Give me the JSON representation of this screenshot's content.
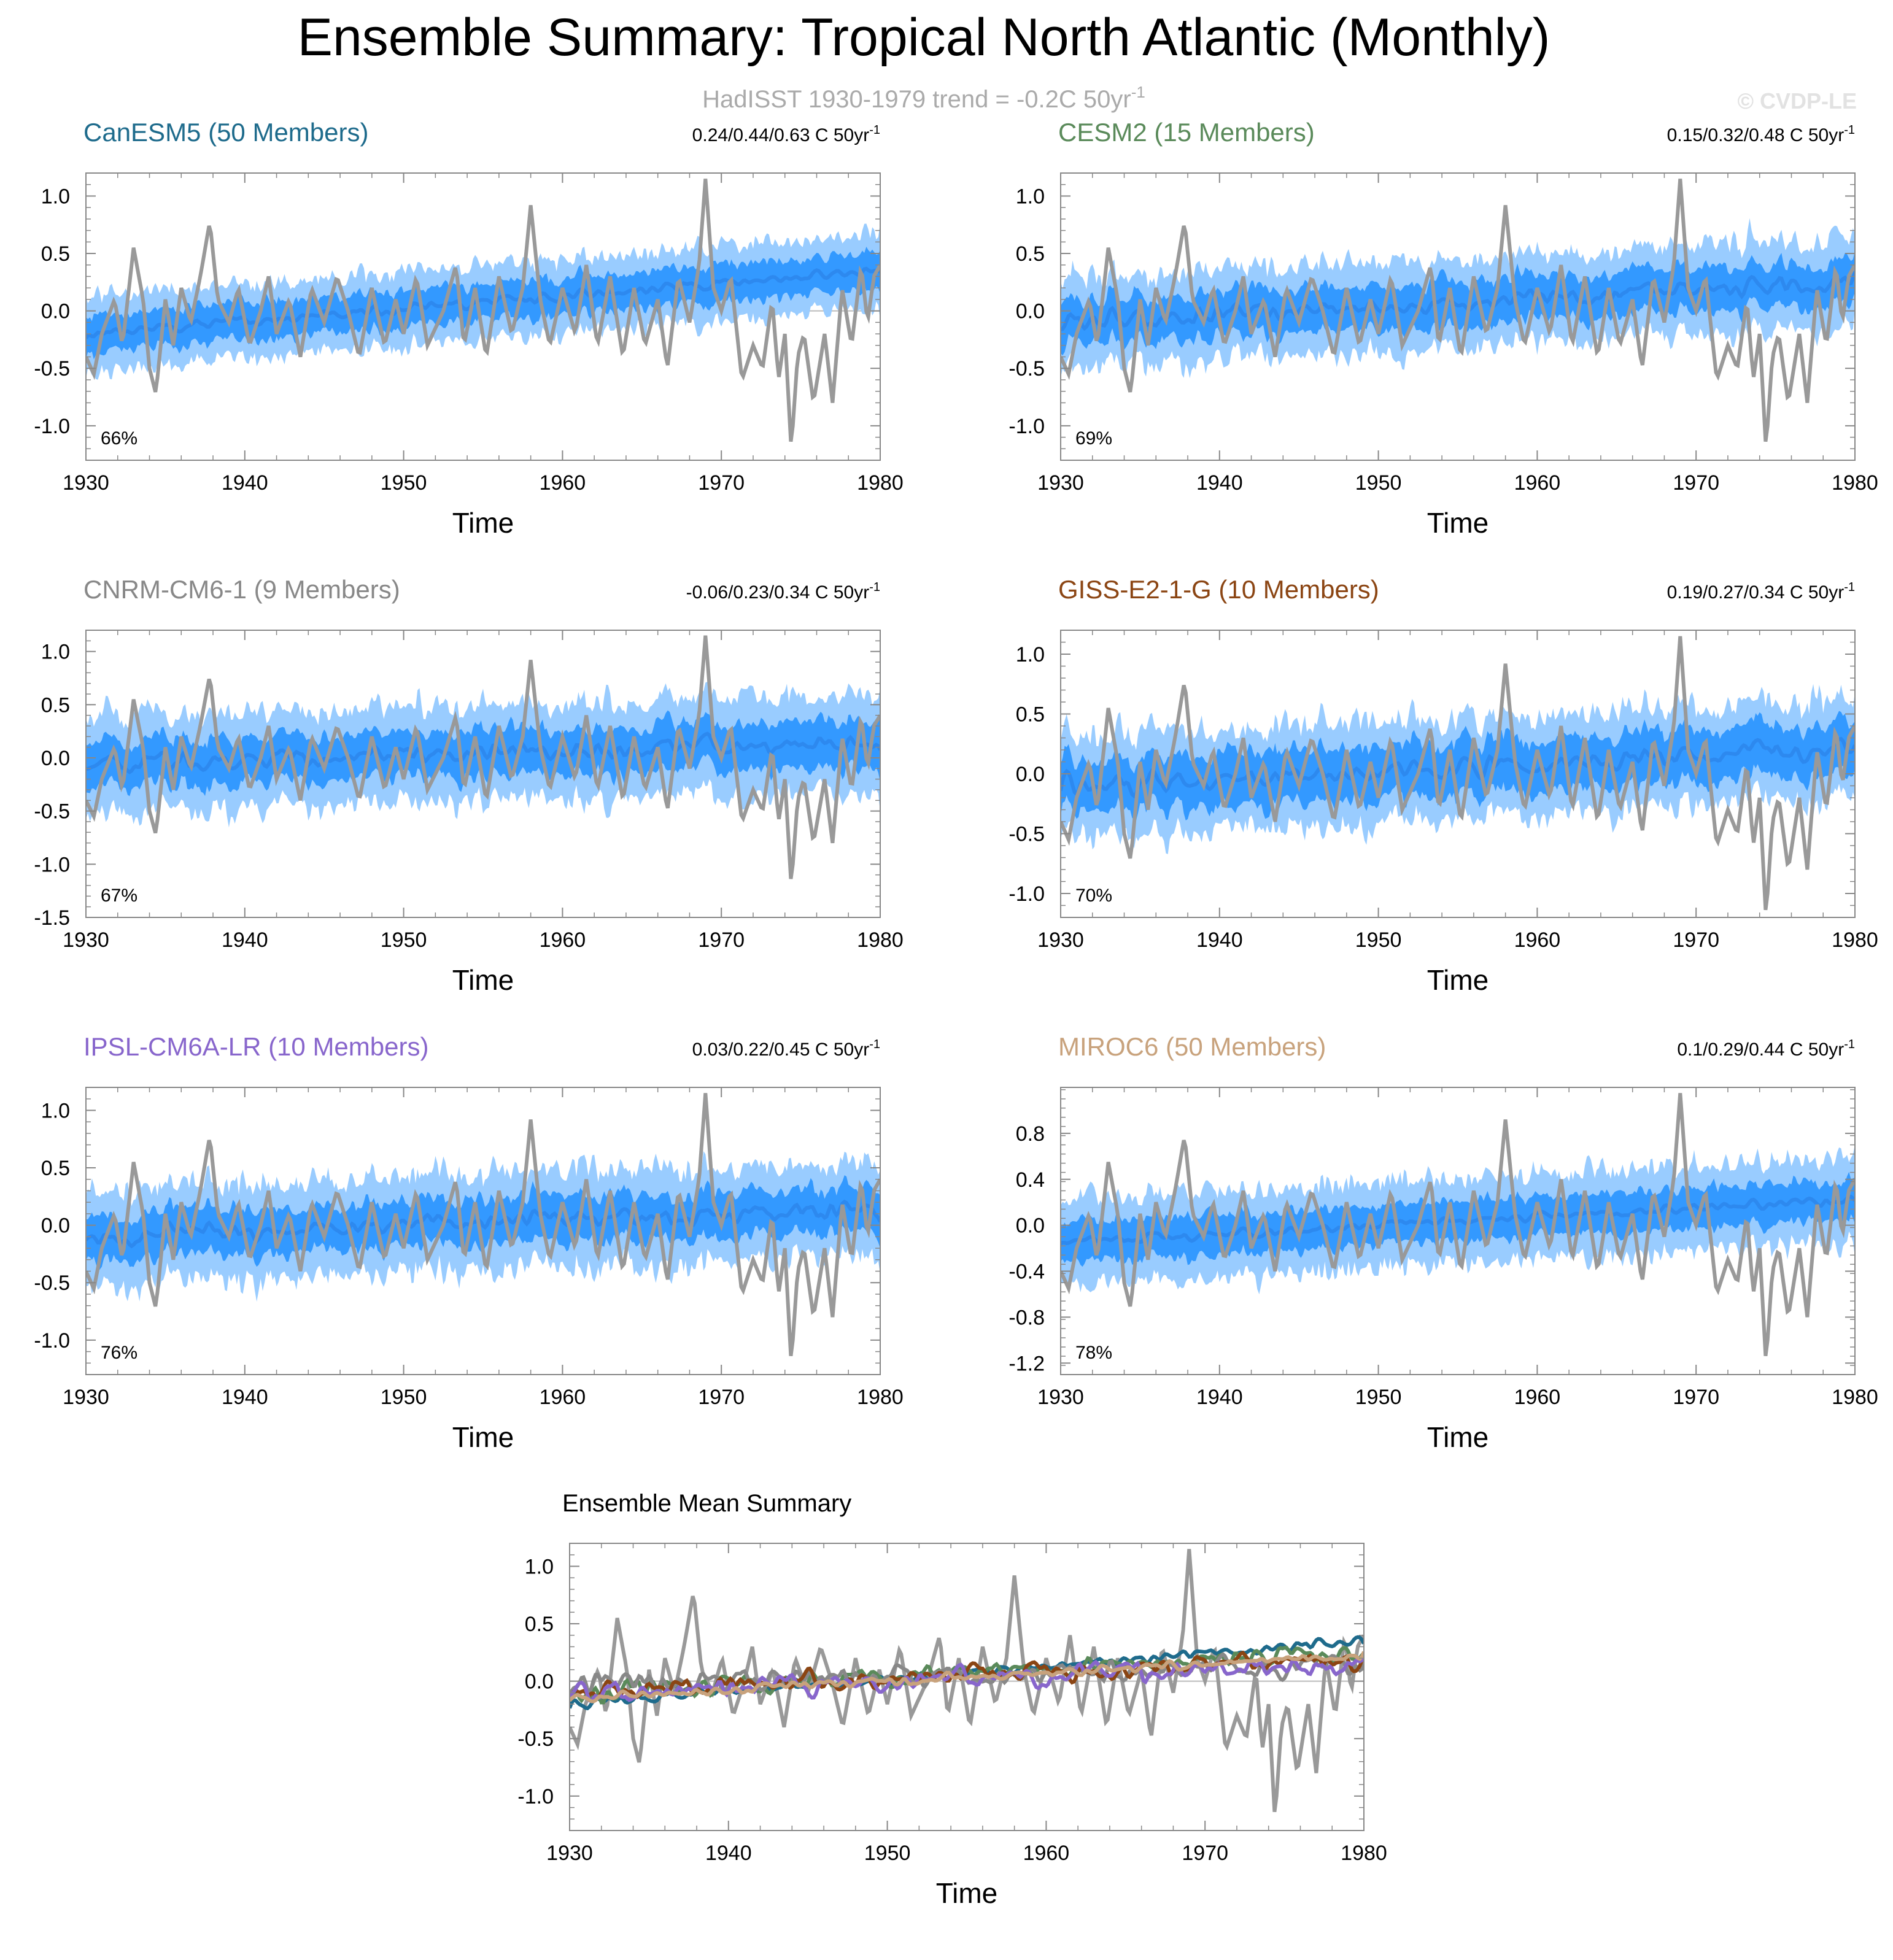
{
  "title": "Ensemble Summary: Tropical North Atlantic (Monthly)",
  "subtitle": {
    "text": "HadISST 1930-1979 trend = -0.2C 50yr",
    "sup": "-1"
  },
  "watermark": "© CVDP-LE",
  "colors": {
    "obs": "#999999",
    "band_outer": "#99ccff",
    "band_inner": "#3399ff",
    "ens_mean": "#2d89ef",
    "zero_line": "#bbbbbb",
    "CanESM5": "#1e6b8c",
    "CESM2": "#5a8a5a",
    "CNRM-CM6-1": "#888888",
    "GISS-E2-1-G": "#8b4513",
    "IPSL-CM6A-LR": "#8866cc",
    "MIROC6": "#c8a27c"
  },
  "chart_data": [
    {
      "type": "area",
      "model": "CanESM5",
      "title": "CanESM5 (50 Members)",
      "trend_label": "0.24/0.44/0.63 C 50yr",
      "trend_sup": "-1",
      "pct_label": "66%",
      "xlabel": "Time",
      "ylabel": "",
      "xlim": [
        1930,
        1980
      ],
      "ylim": [
        -1.3,
        1.2
      ],
      "x_ticks": [
        "1930",
        "1940",
        "1950",
        "1960",
        "1970",
        "1980"
      ],
      "y_ticks": [
        "1.0",
        "0.5",
        "0.0",
        "-0.5",
        "-1.0"
      ],
      "y_tick_values": [
        1.0,
        0.5,
        0.0,
        -0.5,
        -1.0
      ],
      "mean_start": -0.2,
      "mean_end": 0.35,
      "band_inner_halfwidth": 0.18,
      "band_outer_halfwidth": 0.35,
      "mean_noise": 0.05
    },
    {
      "type": "area",
      "model": "CESM2",
      "title": "CESM2 (15 Members)",
      "trend_label": "0.15/0.32/0.48 C 50yr",
      "trend_sup": "-1",
      "pct_label": "69%",
      "xlabel": "Time",
      "ylabel": "",
      "xlim": [
        1930,
        1980
      ],
      "ylim": [
        -1.3,
        1.2
      ],
      "x_ticks": [
        "1930",
        "1940",
        "1950",
        "1960",
        "1970",
        "1980"
      ],
      "y_ticks": [
        "1.0",
        "0.5",
        "0.0",
        "-0.5",
        "-1.0"
      ],
      "y_tick_values": [
        1.0,
        0.5,
        0.0,
        -0.5,
        -1.0
      ],
      "mean_start": -0.1,
      "mean_end": 0.25,
      "band_inner_halfwidth": 0.22,
      "band_outer_halfwidth": 0.42,
      "mean_noise": 0.1
    },
    {
      "type": "area",
      "model": "CNRM-CM6-1",
      "title": "CNRM-CM6-1 (9 Members)",
      "trend_label": "-0.06/0.23/0.34 C 50yr",
      "trend_sup": "-1",
      "pct_label": "67%",
      "xlabel": "Time",
      "ylabel": "",
      "xlim": [
        1930,
        1980
      ],
      "ylim": [
        -1.5,
        1.2
      ],
      "x_ticks": [
        "1930",
        "1940",
        "1950",
        "1960",
        "1970",
        "1980"
      ],
      "y_ticks": [
        "1.0",
        "0.5",
        "0.0",
        "-0.5",
        "-1.0",
        "-1.5"
      ],
      "y_tick_values": [
        1.0,
        0.5,
        0.0,
        -0.5,
        -1.0,
        -1.5
      ],
      "mean_start": -0.05,
      "mean_end": 0.15,
      "band_inner_halfwidth": 0.25,
      "band_outer_halfwidth": 0.5,
      "mean_noise": 0.12
    },
    {
      "type": "area",
      "model": "GISS-E2-1-G",
      "title": "GISS-E2-1-G (10 Members)",
      "trend_label": "0.19/0.27/0.34 C 50yr",
      "trend_sup": "-1",
      "pct_label": "70%",
      "xlabel": "Time",
      "ylabel": "",
      "xlim": [
        1930,
        1980
      ],
      "ylim": [
        -1.2,
        1.2
      ],
      "x_ticks": [
        "1930",
        "1940",
        "1950",
        "1960",
        "1970",
        "1980"
      ],
      "y_ticks": [
        "1.0",
        "0.5",
        "0.0",
        "-0.5",
        "-1.0"
      ],
      "y_tick_values": [
        1.0,
        0.5,
        0.0,
        -0.5,
        -1.0
      ],
      "mean_start": -0.1,
      "mean_end": 0.2,
      "band_inner_halfwidth": 0.25,
      "band_outer_halfwidth": 0.45,
      "mean_noise": 0.12
    },
    {
      "type": "area",
      "model": "IPSL-CM6A-LR",
      "title": "IPSL-CM6A-LR (10 Members)",
      "trend_label": "0.03/0.22/0.45 C 50yr",
      "trend_sup": "-1",
      "pct_label": "76%",
      "xlabel": "Time",
      "ylabel": "",
      "xlim": [
        1930,
        1980
      ],
      "ylim": [
        -1.3,
        1.2
      ],
      "x_ticks": [
        "1930",
        "1940",
        "1950",
        "1960",
        "1970",
        "1980"
      ],
      "y_ticks": [
        "1.0",
        "0.5",
        "0.0",
        "-0.5",
        "-1.0"
      ],
      "y_tick_values": [
        1.0,
        0.5,
        0.0,
        -0.5,
        -1.0
      ],
      "mean_start": -0.1,
      "mean_end": 0.15,
      "band_inner_halfwidth": 0.22,
      "band_outer_halfwidth": 0.45,
      "mean_noise": 0.12
    },
    {
      "type": "area",
      "model": "MIROC6",
      "title": "MIROC6 (50 Members)",
      "trend_label": "0.1/0.29/0.44 C 50yr",
      "trend_sup": "-1",
      "pct_label": "78%",
      "xlabel": "Time",
      "ylabel": "",
      "xlim": [
        1930,
        1980
      ],
      "ylim": [
        -1.3,
        1.2
      ],
      "x_ticks": [
        "1930",
        "1940",
        "1950",
        "1960",
        "1970",
        "1980"
      ],
      "y_ticks": [
        "0.8",
        "0.4",
        "0.0",
        "-0.4",
        "-0.8",
        "-1.2"
      ],
      "y_tick_values": [
        0.8,
        0.4,
        0.0,
        -0.4,
        -0.8,
        -1.2
      ],
      "mean_start": -0.15,
      "mean_end": 0.22,
      "band_inner_halfwidth": 0.2,
      "band_outer_halfwidth": 0.4,
      "mean_noise": 0.05
    },
    {
      "type": "line",
      "model": "Ensemble Mean",
      "title": "Ensemble Mean Summary",
      "xlabel": "Time",
      "ylabel": "",
      "xlim": [
        1930,
        1980
      ],
      "ylim": [
        -1.3,
        1.2
      ],
      "x_ticks": [
        "1930",
        "1940",
        "1950",
        "1960",
        "1970",
        "1980"
      ],
      "y_ticks": [
        "1.0",
        "0.5",
        "0.0",
        "-0.5",
        "-1.0"
      ],
      "y_tick_values": [
        1.0,
        0.5,
        0.0,
        -0.5,
        -1.0
      ],
      "series": [
        {
          "name": "HadISST",
          "color_key": "obs"
        },
        {
          "name": "CanESM5",
          "color_key": "CanESM5",
          "start": -0.2,
          "end": 0.35,
          "noise": 0.05
        },
        {
          "name": "CESM2",
          "color_key": "CESM2",
          "start": -0.1,
          "end": 0.25,
          "noise": 0.1
        },
        {
          "name": "CNRM-CM6-1",
          "color_key": "CNRM-CM6-1",
          "start": -0.05,
          "end": 0.15,
          "noise": 0.12
        },
        {
          "name": "GISS-E2-1-G",
          "color_key": "GISS-E2-1-G",
          "start": -0.1,
          "end": 0.2,
          "noise": 0.12
        },
        {
          "name": "IPSL-CM6A-LR",
          "color_key": "IPSL-CM6A-LR",
          "start": -0.1,
          "end": 0.15,
          "noise": 0.12
        },
        {
          "name": "MIROC6",
          "color_key": "MIROC6",
          "start": -0.15,
          "end": 0.22,
          "noise": 0.05
        }
      ]
    }
  ],
  "observations": {
    "name": "HadISST",
    "keypoints": [
      [
        1930.0,
        -0.4
      ],
      [
        1930.5,
        -0.55
      ],
      [
        1931.0,
        -0.2
      ],
      [
        1931.8,
        0.1
      ],
      [
        1932.3,
        -0.3
      ],
      [
        1933.0,
        0.55
      ],
      [
        1933.6,
        0.1
      ],
      [
        1934.0,
        -0.5
      ],
      [
        1934.4,
        -0.72
      ],
      [
        1935.0,
        0.1
      ],
      [
        1935.5,
        -0.3
      ],
      [
        1936.0,
        0.2
      ],
      [
        1936.6,
        -0.1
      ],
      [
        1937.2,
        0.3
      ],
      [
        1937.8,
        0.78
      ],
      [
        1938.3,
        0.1
      ],
      [
        1939.0,
        -0.1
      ],
      [
        1939.6,
        0.2
      ],
      [
        1940.3,
        -0.3
      ],
      [
        1941.0,
        0.0
      ],
      [
        1941.5,
        0.3
      ],
      [
        1942.0,
        -0.2
      ],
      [
        1942.8,
        0.1
      ],
      [
        1943.5,
        -0.4
      ],
      [
        1944.2,
        0.2
      ],
      [
        1945.0,
        -0.1
      ],
      [
        1945.8,
        0.3
      ],
      [
        1946.5,
        0.0
      ],
      [
        1947.2,
        -0.4
      ],
      [
        1948.0,
        0.2
      ],
      [
        1948.8,
        -0.3
      ],
      [
        1949.5,
        0.1
      ],
      [
        1950.0,
        -0.2
      ],
      [
        1950.8,
        0.3
      ],
      [
        1951.5,
        -0.3
      ],
      [
        1952.5,
        0.0
      ],
      [
        1953.3,
        0.4
      ],
      [
        1953.8,
        -0.3
      ],
      [
        1954.5,
        0.2
      ],
      [
        1955.2,
        -0.4
      ],
      [
        1956.0,
        0.3
      ],
      [
        1956.8,
        -0.2
      ],
      [
        1957.5,
        0.2
      ],
      [
        1958.0,
        0.92
      ],
      [
        1958.6,
        0.1
      ],
      [
        1959.2,
        -0.3
      ],
      [
        1960.0,
        0.2
      ],
      [
        1960.8,
        -0.2
      ],
      [
        1961.5,
        0.4
      ],
      [
        1962.2,
        -0.3
      ],
      [
        1963.0,
        0.3
      ],
      [
        1963.8,
        -0.4
      ],
      [
        1964.5,
        0.2
      ],
      [
        1965.2,
        -0.3
      ],
      [
        1966.0,
        0.1
      ],
      [
        1966.6,
        -0.5
      ],
      [
        1967.3,
        0.3
      ],
      [
        1968.0,
        -0.1
      ],
      [
        1968.6,
        0.4
      ],
      [
        1969.0,
        1.15
      ],
      [
        1969.5,
        0.2
      ],
      [
        1970.0,
        0.0
      ],
      [
        1970.6,
        0.3
      ],
      [
        1971.3,
        -0.6
      ],
      [
        1972.0,
        -0.3
      ],
      [
        1972.6,
        -0.5
      ],
      [
        1973.2,
        0.1
      ],
      [
        1973.6,
        -0.6
      ],
      [
        1974.0,
        -0.2
      ],
      [
        1974.4,
        -1.2
      ],
      [
        1974.8,
        -0.4
      ],
      [
        1975.2,
        -0.2
      ],
      [
        1975.8,
        -0.8
      ],
      [
        1976.5,
        -0.2
      ],
      [
        1977.0,
        -0.8
      ],
      [
        1977.6,
        0.2
      ],
      [
        1978.2,
        -0.3
      ],
      [
        1978.8,
        0.4
      ],
      [
        1979.2,
        -0.1
      ],
      [
        1979.6,
        0.3
      ],
      [
        1980.0,
        0.4
      ]
    ]
  }
}
